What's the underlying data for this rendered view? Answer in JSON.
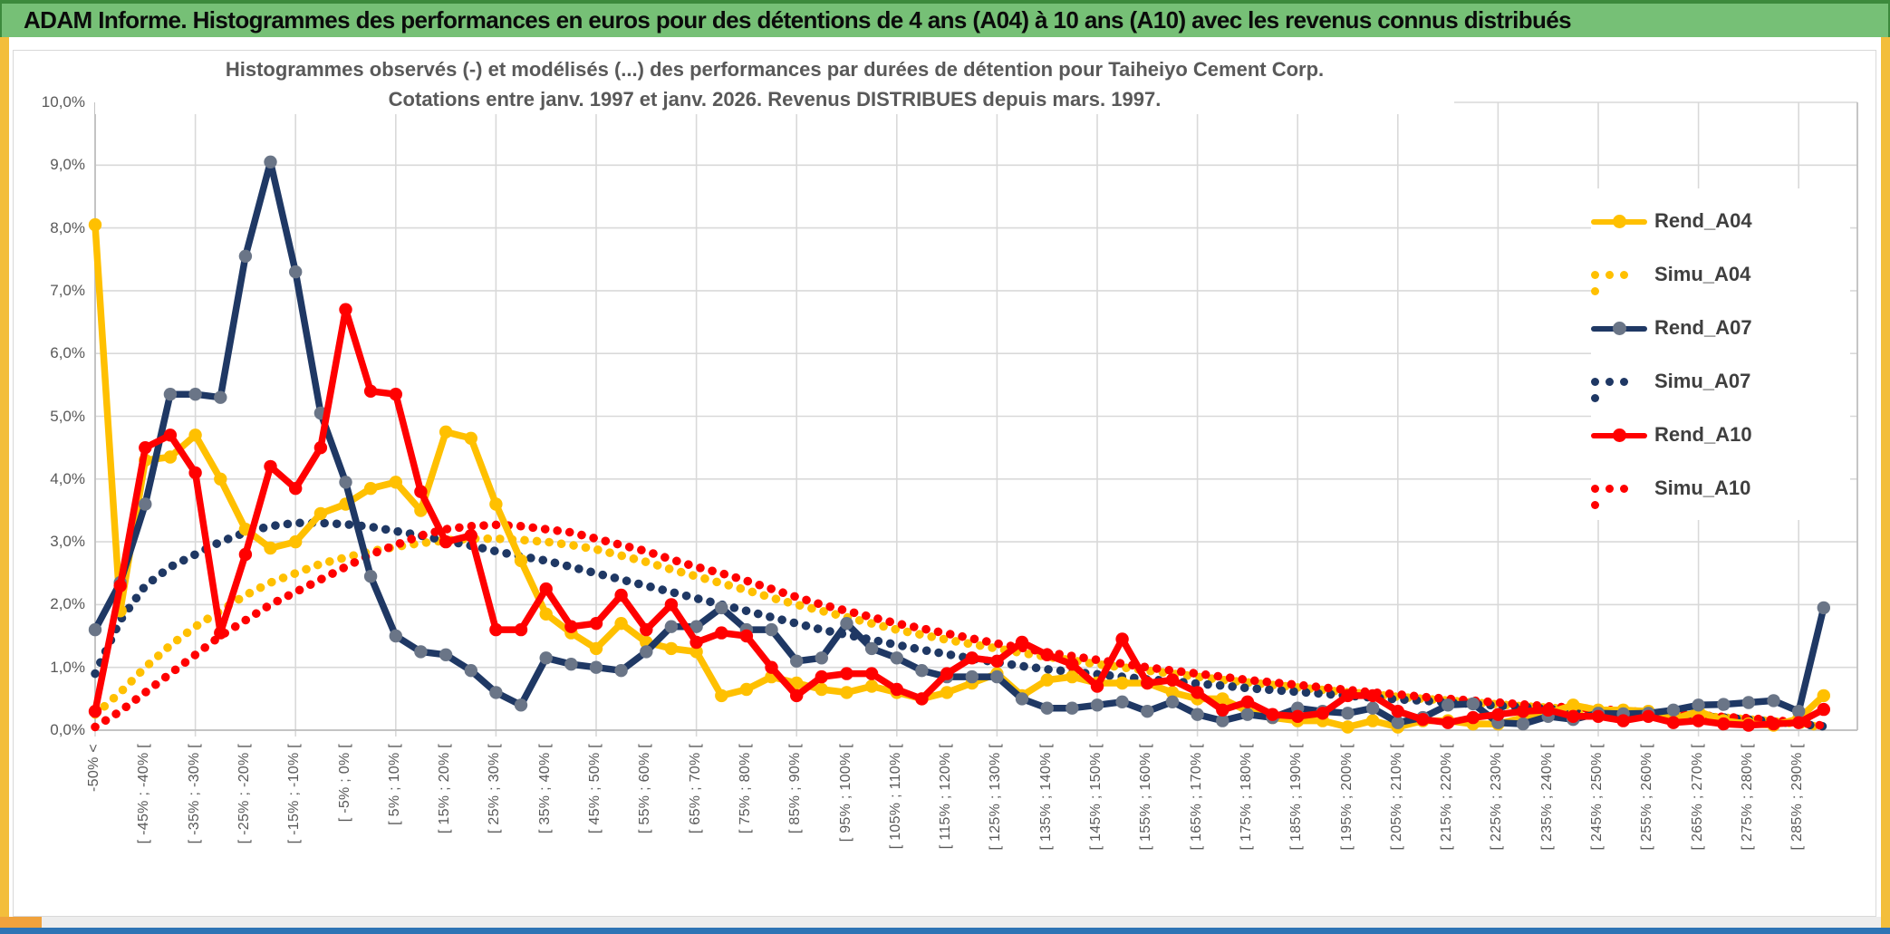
{
  "header": {
    "title": "ADAM Informe. Histogrammes des performances en euros pour des détentions de 4 ans (A04) à 10 ans (A10) avec les revenus connus distribués"
  },
  "chart": {
    "title_line1": "Histogrammes observés (-) et modélisés (...) des performances par durées de détention pour Taiheiyo Cement Corp.",
    "title_line2": "Cotations entre janv. 1997 et janv. 2026. Revenus DISTRIBUES depuis mars. 1997."
  },
  "colors": {
    "gold": "#FFC000",
    "navy": "#1F3864",
    "navy_marker": "#6A7587",
    "red": "#FF0000",
    "grid": "#D9D9D9",
    "axis_text": "#595959",
    "green_bar": "#76C076",
    "side_strip": "#F3BE3B",
    "scroll_thumb": "#F0A23C",
    "bottom_bar": "#2E74B5"
  },
  "chart_data": {
    "type": "line",
    "title": "Histogrammes observés (-) et modélisés (...) des performances par durées de détention pour Taiheiyo Cement Corp. Cotations entre janv. 1997 et janv. 2026. Revenus DISTRIBUES depuis mars. 1997.",
    "ylim": [
      0,
      10
    ],
    "grid": true,
    "legend_position": "right",
    "y_tick_labels": [
      "10,0%",
      "9,0%",
      "8,0%",
      "7,0%",
      "6,0%",
      "5,0%",
      "4,0%",
      "3,0%",
      "2,0%",
      "1,0%",
      "0,0%"
    ],
    "n_points": 70,
    "x_points_per_label": 2,
    "x_tick_labels": [
      "-50% <",
      "[ -45% ; -40% [",
      "[ -35% ; -30% [",
      "[ -25% ; -20% [",
      "[ -15% ; -10% [",
      "[ -5% ; 0% [",
      "[ 5% ; 10% [",
      "[ 15% ; 20% [",
      "[ 25% ; 30% [",
      "[ 35% ; 40% [",
      "[ 45% ; 50% [",
      "[ 55% ; 60% [",
      "[ 65% ; 70% [",
      "[ 75% ; 80% [",
      "[ 85% ; 90% [",
      "[ 95% ; 100% [",
      "[ 105% ; 110% [",
      "[ 115% ; 120% [",
      "[ 125% ; 130% [",
      "[ 135% ; 140% [",
      "[ 145% ; 150% [",
      "[ 155% ; 160% [",
      "[ 165% ; 170% [",
      "[ 175% ; 180% [",
      "[ 185% ; 190% [",
      "[ 195% ; 200% [",
      "[ 205% ; 210% [",
      "[ 215% ; 220% [",
      "[ 225% ; 230% [",
      "[ 235% ; 240% [",
      "[ 245% ; 250% [",
      "[ 255% ; 260% [",
      "[ 265% ; 270% [",
      "[ 275% ; 280% [",
      "[ 285% ; 290% ["
    ],
    "series": [
      {
        "name": "Rend_A04",
        "style": "solid",
        "color": "#FFC000",
        "marker_color": "#FFC000",
        "values": [
          8.05,
          1.9,
          4.3,
          4.35,
          4.7,
          4.0,
          3.2,
          2.9,
          3.0,
          3.45,
          3.6,
          3.85,
          3.95,
          3.5,
          4.75,
          4.65,
          3.6,
          2.7,
          1.85,
          1.55,
          1.3,
          1.7,
          1.4,
          1.3,
          1.25,
          0.55,
          0.65,
          0.85,
          0.75,
          0.65,
          0.6,
          0.7,
          0.6,
          0.5,
          0.6,
          0.75,
          0.9,
          0.55,
          0.8,
          0.85,
          0.75,
          0.75,
          0.75,
          0.6,
          0.5,
          0.5,
          0.3,
          0.2,
          0.15,
          0.15,
          0.05,
          0.15,
          0.05,
          0.15,
          0.15,
          0.1,
          0.1,
          0.2,
          0.27,
          0.4,
          0.32,
          0.32,
          0.3,
          0.17,
          0.3,
          0.15,
          0.1,
          0.08,
          0.18,
          0.55
        ]
      },
      {
        "name": "Simu_A04",
        "style": "dotted",
        "color": "#FFC000",
        "values": [
          0.25,
          0.6,
          1.0,
          1.35,
          1.65,
          1.9,
          2.15,
          2.35,
          2.5,
          2.65,
          2.75,
          2.85,
          2.92,
          2.98,
          3.02,
          3.05,
          3.05,
          3.03,
          3.0,
          2.95,
          2.88,
          2.78,
          2.68,
          2.56,
          2.45,
          2.34,
          2.23,
          2.11,
          2.0,
          1.9,
          1.8,
          1.7,
          1.6,
          1.52,
          1.44,
          1.37,
          1.3,
          1.23,
          1.17,
          1.11,
          1.05,
          1.0,
          0.95,
          0.9,
          0.85,
          0.8,
          0.76,
          0.72,
          0.68,
          0.64,
          0.6,
          0.57,
          0.53,
          0.5,
          0.47,
          0.44,
          0.41,
          0.38,
          0.36,
          0.33,
          0.31,
          0.28,
          0.26,
          0.24,
          0.22,
          0.2,
          0.17,
          0.14,
          0.1,
          0.04
        ]
      },
      {
        "name": "Rend_A07",
        "style": "solid",
        "color": "#1F3864",
        "marker_color": "#6A7587",
        "values": [
          1.6,
          2.35,
          3.6,
          5.35,
          5.35,
          5.3,
          7.55,
          9.05,
          7.3,
          5.05,
          3.95,
          2.45,
          1.5,
          1.25,
          1.2,
          0.95,
          0.6,
          0.4,
          1.15,
          1.05,
          1.0,
          0.95,
          1.25,
          1.65,
          1.65,
          1.95,
          1.6,
          1.6,
          1.1,
          1.15,
          1.7,
          1.3,
          1.15,
          0.95,
          0.85,
          0.85,
          0.85,
          0.5,
          0.35,
          0.35,
          0.4,
          0.45,
          0.3,
          0.45,
          0.25,
          0.15,
          0.25,
          0.2,
          0.35,
          0.3,
          0.27,
          0.35,
          0.12,
          0.2,
          0.4,
          0.42,
          0.12,
          0.1,
          0.22,
          0.17,
          0.27,
          0.26,
          0.27,
          0.32,
          0.4,
          0.41,
          0.44,
          0.47,
          0.3,
          1.95
        ]
      },
      {
        "name": "Simu_A07",
        "style": "dotted",
        "color": "#1F3864",
        "values": [
          0.9,
          1.75,
          2.3,
          2.6,
          2.8,
          3.0,
          3.15,
          3.25,
          3.3,
          3.3,
          3.28,
          3.24,
          3.17,
          3.1,
          3.02,
          2.94,
          2.85,
          2.77,
          2.7,
          2.6,
          2.5,
          2.4,
          2.3,
          2.2,
          2.1,
          2.0,
          1.9,
          1.8,
          1.7,
          1.6,
          1.52,
          1.44,
          1.36,
          1.28,
          1.21,
          1.14,
          1.08,
          1.02,
          0.97,
          0.93,
          0.89,
          0.85,
          0.81,
          0.78,
          0.74,
          0.71,
          0.67,
          0.64,
          0.61,
          0.58,
          0.55,
          0.52,
          0.49,
          0.47,
          0.44,
          0.42,
          0.39,
          0.37,
          0.34,
          0.32,
          0.3,
          0.28,
          0.26,
          0.24,
          0.22,
          0.2,
          0.17,
          0.14,
          0.1,
          0.06
        ]
      },
      {
        "name": "Rend_A10",
        "style": "solid",
        "color": "#FF0000",
        "marker_color": "#FF0000",
        "values": [
          0.3,
          2.3,
          4.5,
          4.7,
          4.1,
          1.55,
          2.8,
          4.2,
          3.85,
          4.5,
          6.7,
          5.4,
          5.35,
          3.8,
          3.0,
          3.1,
          1.6,
          1.6,
          2.25,
          1.65,
          1.7,
          2.15,
          1.6,
          2.0,
          1.4,
          1.55,
          1.5,
          1.0,
          0.55,
          0.85,
          0.9,
          0.9,
          0.65,
          0.5,
          0.9,
          1.15,
          1.1,
          1.4,
          1.2,
          1.05,
          0.7,
          1.45,
          0.75,
          0.8,
          0.6,
          0.32,
          0.45,
          0.25,
          0.22,
          0.27,
          0.55,
          0.55,
          0.3,
          0.17,
          0.12,
          0.2,
          0.25,
          0.3,
          0.32,
          0.22,
          0.22,
          0.15,
          0.22,
          0.12,
          0.15,
          0.1,
          0.08,
          0.1,
          0.12,
          0.33
        ]
      },
      {
        "name": "Simu_A10",
        "style": "dotted",
        "color": "#FF0000",
        "values": [
          0.05,
          0.3,
          0.6,
          0.9,
          1.2,
          1.5,
          1.75,
          2.0,
          2.2,
          2.4,
          2.6,
          2.8,
          2.95,
          3.1,
          3.2,
          3.25,
          3.27,
          3.25,
          3.2,
          3.15,
          3.05,
          2.95,
          2.85,
          2.72,
          2.6,
          2.5,
          2.38,
          2.25,
          2.12,
          2.0,
          1.9,
          1.8,
          1.7,
          1.62,
          1.54,
          1.46,
          1.38,
          1.31,
          1.24,
          1.18,
          1.12,
          1.06,
          1.0,
          0.95,
          0.9,
          0.85,
          0.8,
          0.76,
          0.72,
          0.68,
          0.64,
          0.6,
          0.57,
          0.53,
          0.5,
          0.47,
          0.44,
          0.41,
          0.38,
          0.36,
          0.33,
          0.31,
          0.28,
          0.26,
          0.24,
          0.21,
          0.19,
          0.16,
          0.12,
          0.07
        ]
      }
    ]
  }
}
